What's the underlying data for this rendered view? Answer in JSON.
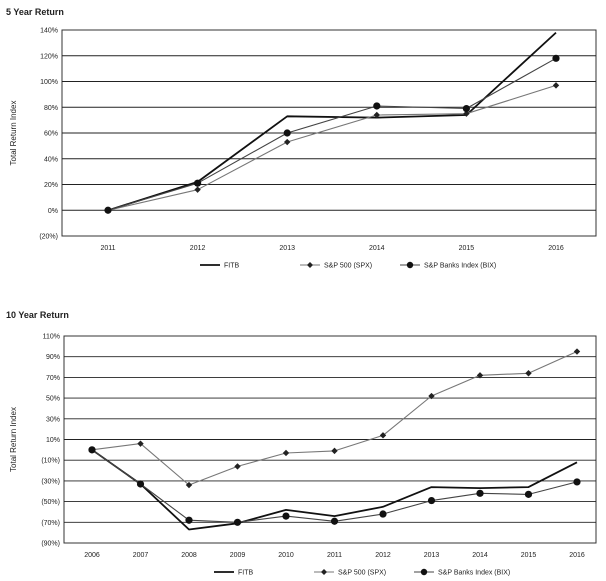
{
  "chart_data": [
    {
      "type": "line",
      "title": "5 Year Return",
      "xlabel": "",
      "ylabel": "Total Return Index",
      "categories": [
        "2011",
        "2012",
        "2013",
        "2014",
        "2015",
        "2016"
      ],
      "ylim": [
        -20,
        140
      ],
      "yticks": [
        -20,
        0,
        20,
        40,
        60,
        80,
        100,
        120,
        140
      ],
      "ytick_labels": [
        "(20%)",
        "0%",
        "20%",
        "40%",
        "60%",
        "80%",
        "100%",
        "120%",
        "140%"
      ],
      "legend_position": "bottom",
      "series": [
        {
          "name": "FITB",
          "marker": "none",
          "values": [
            0,
            22,
            73,
            72,
            74,
            138
          ]
        },
        {
          "name": "S&P 500 (SPX)",
          "marker": "diamond",
          "values": [
            0,
            16,
            53,
            74,
            75,
            97
          ]
        },
        {
          "name": "S&P Banks Index (BIX)",
          "marker": "circle",
          "values": [
            0,
            21,
            60,
            81,
            79,
            118
          ]
        }
      ]
    },
    {
      "type": "line",
      "title": "10 Year Return",
      "xlabel": "",
      "ylabel": "Total Return Index",
      "categories": [
        "2006",
        "2007",
        "2008",
        "2009",
        "2010",
        "2011",
        "2012",
        "2013",
        "2014",
        "2015",
        "2016"
      ],
      "ylim": [
        -90,
        110
      ],
      "yticks": [
        -90,
        -70,
        -50,
        -30,
        -10,
        10,
        30,
        50,
        70,
        90,
        110
      ],
      "ytick_labels": [
        "(90%)",
        "(70%)",
        "(50%)",
        "(30%)",
        "(10%)",
        "10%",
        "30%",
        "50%",
        "70%",
        "90%",
        "110%"
      ],
      "legend_position": "bottom",
      "series": [
        {
          "name": "FITB",
          "marker": "none",
          "values": [
            0,
            -33,
            -77,
            -71,
            -58,
            -64,
            -55,
            -36,
            -37,
            -36,
            -12
          ]
        },
        {
          "name": "S&P 500 (SPX)",
          "marker": "diamond",
          "values": [
            0,
            6,
            -34,
            -16,
            -3,
            -1,
            14,
            52,
            72,
            74,
            95
          ]
        },
        {
          "name": "S&P Banks Index (BIX)",
          "marker": "circle",
          "values": [
            0,
            -33,
            -68,
            -70,
            -64,
            -69,
            -62,
            -49,
            -42,
            -43,
            -31
          ]
        }
      ]
    }
  ]
}
